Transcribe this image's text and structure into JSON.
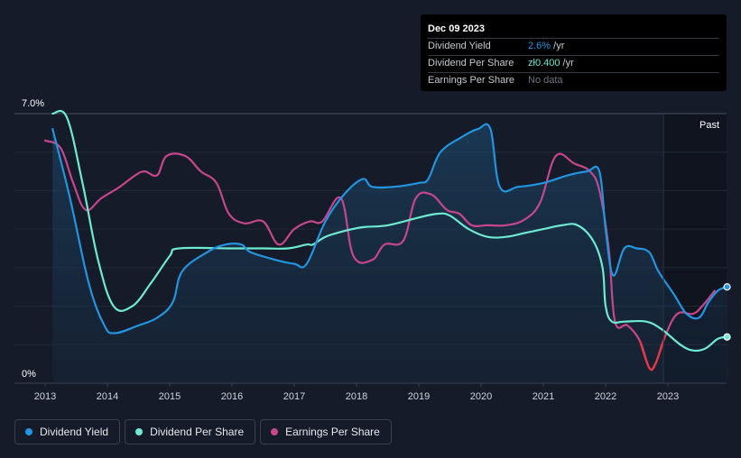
{
  "tooltip": {
    "date": "Dec 09 2023",
    "rows": [
      {
        "label": "Dividend Yield",
        "value": "2.6%",
        "unit": " /yr"
      },
      {
        "label": "Dividend Per Share",
        "value": "zł0.400",
        "unit": " /yr"
      },
      {
        "label": "Earnings Per Share",
        "value": "No data",
        "unit": ""
      }
    ]
  },
  "past_label": "Past",
  "legend": [
    {
      "label": "Dividend Yield",
      "color": "#2394df"
    },
    {
      "label": "Dividend Per Share",
      "color": "#6ee9d2"
    },
    {
      "label": "Earnings Per Share",
      "color": "#c6468d"
    }
  ],
  "chart_data": {
    "type": "line",
    "y_tick_labels": [
      "7.0%",
      "0%"
    ],
    "ylim": [
      0,
      7.0
    ],
    "xlim": [
      2013.0,
      2023.95
    ],
    "x_ticks": [
      2013,
      2014,
      2015,
      2016,
      2017,
      2018,
      2019,
      2020,
      2021,
      2022,
      2023
    ],
    "x_tick_labels": [
      "2013",
      "2014",
      "2015",
      "2016",
      "2017",
      "2018",
      "2019",
      "2020",
      "2021",
      "2022",
      "2023"
    ],
    "forecast_start": 2022.93,
    "grid": true,
    "colors": {
      "yield": "#2394df",
      "dps": "#6ee9d2",
      "eps": "#c6468d",
      "eps_negative": "#e8383d"
    },
    "series": [
      {
        "name": "Dividend Yield",
        "key": "yield",
        "points": [
          [
            2013.12,
            6.6
          ],
          [
            2013.4,
            4.8
          ],
          [
            2013.7,
            2.6
          ],
          [
            2013.95,
            1.5
          ],
          [
            2014.12,
            1.3
          ],
          [
            2014.5,
            1.5
          ],
          [
            2014.8,
            1.7
          ],
          [
            2015.05,
            2.1
          ],
          [
            2015.2,
            2.9
          ],
          [
            2015.6,
            3.4
          ],
          [
            2015.9,
            3.6
          ],
          [
            2016.15,
            3.6
          ],
          [
            2016.3,
            3.4
          ],
          [
            2016.7,
            3.2
          ],
          [
            2017.0,
            3.1
          ],
          [
            2017.2,
            3.1
          ],
          [
            2017.5,
            4.2
          ],
          [
            2017.8,
            4.9
          ],
          [
            2018.1,
            5.3
          ],
          [
            2018.25,
            5.1
          ],
          [
            2018.6,
            5.1
          ],
          [
            2019.0,
            5.2
          ],
          [
            2019.15,
            5.3
          ],
          [
            2019.35,
            6.0
          ],
          [
            2019.7,
            6.4
          ],
          [
            2019.95,
            6.6
          ],
          [
            2020.15,
            6.6
          ],
          [
            2020.3,
            5.1
          ],
          [
            2020.6,
            5.1
          ],
          [
            2021.0,
            5.2
          ],
          [
            2021.4,
            5.4
          ],
          [
            2021.7,
            5.5
          ],
          [
            2021.9,
            5.5
          ],
          [
            2022.0,
            4.0
          ],
          [
            2022.12,
            2.8
          ],
          [
            2022.3,
            3.5
          ],
          [
            2022.5,
            3.5
          ],
          [
            2022.7,
            3.4
          ],
          [
            2022.85,
            2.9
          ],
          [
            2023.1,
            2.3
          ],
          [
            2023.3,
            1.8
          ],
          [
            2023.5,
            1.7
          ],
          [
            2023.65,
            2.1
          ],
          [
            2023.8,
            2.4
          ],
          [
            2023.95,
            2.5
          ]
        ]
      },
      {
        "name": "Dividend Per Share",
        "key": "dps",
        "points": [
          [
            2013.12,
            7.0
          ],
          [
            2013.35,
            6.9
          ],
          [
            2013.6,
            5.2
          ],
          [
            2013.85,
            3.2
          ],
          [
            2014.1,
            2.0
          ],
          [
            2014.4,
            2.0
          ],
          [
            2014.7,
            2.6
          ],
          [
            2015.0,
            3.3
          ],
          [
            2015.15,
            3.5
          ],
          [
            2016.0,
            3.5
          ],
          [
            2016.5,
            3.5
          ],
          [
            2016.9,
            3.5
          ],
          [
            2017.2,
            3.6
          ],
          [
            2017.3,
            3.6
          ],
          [
            2017.5,
            3.8
          ],
          [
            2017.8,
            3.95
          ],
          [
            2018.1,
            4.05
          ],
          [
            2018.5,
            4.1
          ],
          [
            2019.0,
            4.3
          ],
          [
            2019.3,
            4.4
          ],
          [
            2019.5,
            4.35
          ],
          [
            2019.8,
            4.0
          ],
          [
            2020.1,
            3.8
          ],
          [
            2020.4,
            3.8
          ],
          [
            2020.7,
            3.9
          ],
          [
            2021.0,
            4.0
          ],
          [
            2021.3,
            4.1
          ],
          [
            2021.55,
            4.1
          ],
          [
            2021.8,
            3.7
          ],
          [
            2021.95,
            3.0
          ],
          [
            2022.0,
            2.0
          ],
          [
            2022.1,
            1.6
          ],
          [
            2022.3,
            1.6
          ],
          [
            2022.65,
            1.6
          ],
          [
            2022.9,
            1.4
          ],
          [
            2023.2,
            1.0
          ],
          [
            2023.4,
            0.85
          ],
          [
            2023.6,
            0.9
          ],
          [
            2023.8,
            1.15
          ],
          [
            2023.95,
            1.2
          ]
        ]
      },
      {
        "name": "Earnings Per Share",
        "key": "eps",
        "points": [
          [
            2013.0,
            6.3
          ],
          [
            2013.25,
            6.1
          ],
          [
            2013.45,
            5.2
          ],
          [
            2013.65,
            4.5
          ],
          [
            2013.9,
            4.8
          ],
          [
            2014.2,
            5.1
          ],
          [
            2014.45,
            5.4
          ],
          [
            2014.6,
            5.5
          ],
          [
            2014.8,
            5.4
          ],
          [
            2014.95,
            5.9
          ],
          [
            2015.25,
            5.9
          ],
          [
            2015.5,
            5.5
          ],
          [
            2015.75,
            5.2
          ],
          [
            2015.95,
            4.4
          ],
          [
            2016.2,
            4.15
          ],
          [
            2016.5,
            4.2
          ],
          [
            2016.75,
            3.6
          ],
          [
            2017.0,
            4.0
          ],
          [
            2017.25,
            4.2
          ],
          [
            2017.45,
            4.2
          ],
          [
            2017.75,
            4.8
          ],
          [
            2017.95,
            3.3
          ],
          [
            2018.25,
            3.2
          ],
          [
            2018.45,
            3.6
          ],
          [
            2018.75,
            3.7
          ],
          [
            2018.95,
            4.8
          ],
          [
            2019.2,
            4.9
          ],
          [
            2019.45,
            4.5
          ],
          [
            2019.65,
            4.4
          ],
          [
            2019.85,
            4.1
          ],
          [
            2020.1,
            4.1
          ],
          [
            2020.4,
            4.1
          ],
          [
            2020.7,
            4.25
          ],
          [
            2020.95,
            4.7
          ],
          [
            2021.2,
            5.9
          ],
          [
            2021.5,
            5.7
          ],
          [
            2021.75,
            5.5
          ],
          [
            2021.9,
            5.0
          ],
          [
            2022.05,
            3.5
          ],
          [
            2022.15,
            1.6
          ],
          [
            2022.35,
            1.5
          ],
          [
            2022.55,
            1.1
          ],
          [
            2022.7,
            0.4
          ],
          [
            2022.8,
            0.5
          ],
          [
            2022.95,
            1.2
          ],
          [
            2023.15,
            1.8
          ],
          [
            2023.4,
            1.8
          ],
          [
            2023.55,
            2.0
          ],
          [
            2023.75,
            2.4
          ]
        ]
      }
    ],
    "eps_negative_range": [
      2022.55,
      2022.95
    ]
  }
}
